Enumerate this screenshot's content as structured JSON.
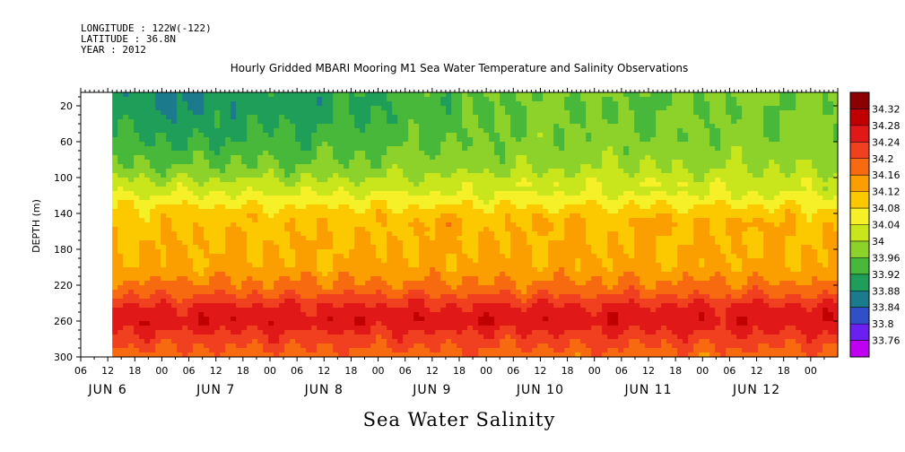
{
  "header": {
    "longitude": "LONGITUDE : 122W(-122)",
    "latitude": "LATITUDE : 36.8N",
    "year": "YEAR : 2012"
  },
  "chart_data": {
    "type": "heatmap",
    "title": "Hourly Gridded MBARI Mooring M1 Sea Water Temperature and Salinity Observations",
    "xlabel": "Sea Water Salinity",
    "ylabel": "DEPTH (m)",
    "y_range": [
      300,
      5
    ],
    "y_ticks": [
      20,
      60,
      100,
      140,
      180,
      220,
      260,
      300
    ],
    "x_range_hours": [
      0,
      168
    ],
    "data_start_hour": 7,
    "x_ticks": [
      {
        "hour": 0,
        "label": "06"
      },
      {
        "hour": 6,
        "label": "12"
      },
      {
        "hour": 12,
        "label": "18"
      },
      {
        "hour": 18,
        "label": "00"
      },
      {
        "hour": 24,
        "label": "06"
      },
      {
        "hour": 30,
        "label": "12"
      },
      {
        "hour": 36,
        "label": "18"
      },
      {
        "hour": 42,
        "label": "00"
      },
      {
        "hour": 48,
        "label": "06"
      },
      {
        "hour": 54,
        "label": "12"
      },
      {
        "hour": 60,
        "label": "18"
      },
      {
        "hour": 66,
        "label": "00"
      },
      {
        "hour": 72,
        "label": "06"
      },
      {
        "hour": 78,
        "label": "12"
      },
      {
        "hour": 84,
        "label": "18"
      },
      {
        "hour": 90,
        "label": "00"
      },
      {
        "hour": 96,
        "label": "06"
      },
      {
        "hour": 102,
        "label": "12"
      },
      {
        "hour": 108,
        "label": "18"
      },
      {
        "hour": 114,
        "label": "00"
      },
      {
        "hour": 120,
        "label": "06"
      },
      {
        "hour": 126,
        "label": "12"
      },
      {
        "hour": 132,
        "label": "18"
      },
      {
        "hour": 138,
        "label": "00"
      },
      {
        "hour": 144,
        "label": "06"
      },
      {
        "hour": 150,
        "label": "12"
      },
      {
        "hour": 156,
        "label": "18"
      },
      {
        "hour": 162,
        "label": "00"
      }
    ],
    "day_labels": [
      {
        "hour": 6,
        "label": "JUN  6"
      },
      {
        "hour": 30,
        "label": "JUN  7"
      },
      {
        "hour": 54,
        "label": "JUN  8"
      },
      {
        "hour": 78,
        "label": "JUN  9"
      },
      {
        "hour": 102,
        "label": "JUN 10"
      },
      {
        "hour": 126,
        "label": "JUN 11"
      },
      {
        "hour": 150,
        "label": "JUN 12"
      }
    ],
    "colorbar": {
      "levels": [
        "34.32",
        "34.28",
        "34.24",
        "34.2",
        "34.16",
        "34.12",
        "34.08",
        "34.04",
        "34",
        "33.96",
        "33.92",
        "33.88",
        "33.84",
        "33.8",
        "33.76"
      ],
      "colors": [
        "#8b0000",
        "#c00000",
        "#e01818",
        "#f04020",
        "#f86a10",
        "#fb9e00",
        "#fcc800",
        "#f5f028",
        "#c9e61c",
        "#8cd22a",
        "#48b83a",
        "#1f9e5a",
        "#1b7a8c",
        "#3050c8",
        "#6a20f0",
        "#c000f0"
      ]
    },
    "depth_profile": [
      {
        "depth": 5,
        "value": 33.9
      },
      {
        "depth": 20,
        "value": 33.9
      },
      {
        "depth": 60,
        "value": 33.93
      },
      {
        "depth": 90,
        "value": 33.97
      },
      {
        "depth": 110,
        "value": 34.02
      },
      {
        "depth": 140,
        "value": 34.1
      },
      {
        "depth": 170,
        "value": 34.12
      },
      {
        "depth": 200,
        "value": 34.13
      },
      {
        "depth": 225,
        "value": 34.18
      },
      {
        "depth": 245,
        "value": 34.25
      },
      {
        "depth": 260,
        "value": 34.27
      },
      {
        "depth": 280,
        "value": 34.22
      },
      {
        "depth": 300,
        "value": 34.18
      }
    ]
  }
}
